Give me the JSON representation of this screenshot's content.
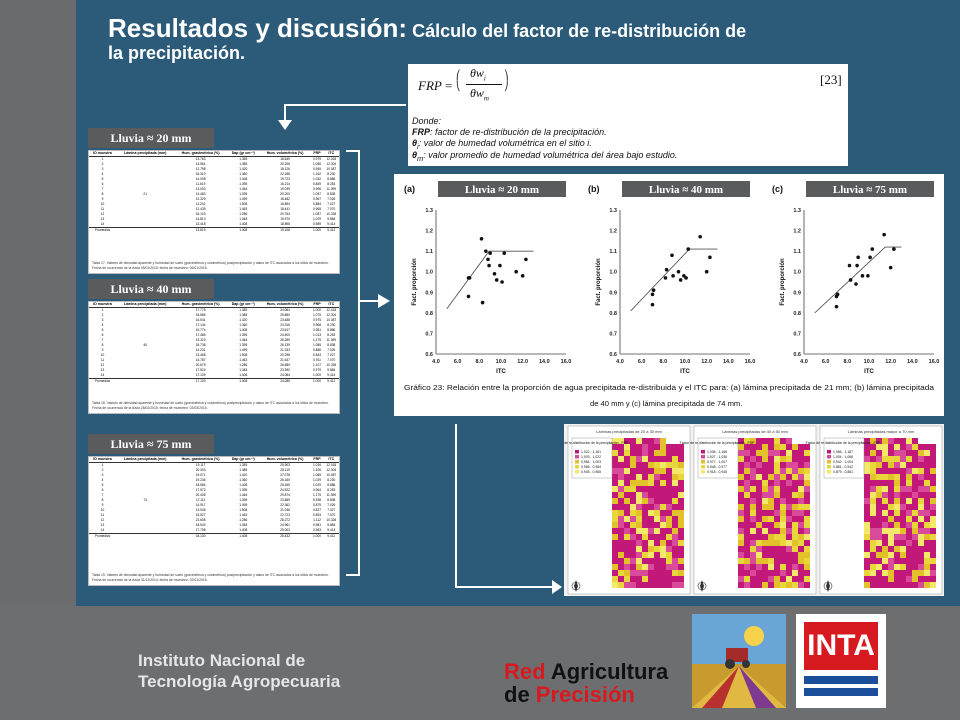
{
  "title": {
    "main": "Resultados y discusión:",
    "sub_line1": " Cálculo del factor de re-distribución de",
    "sub_line2": "la precipitación."
  },
  "institution": {
    "line1": "Instituto Nacional de",
    "line2": "Tecnología Agropecuaria"
  },
  "labels": {
    "rain20": "Lluvia ≈ 20 mm",
    "rain40": "Lluvia ≈ 40 mm",
    "rain75": "Lluvia ≈ 75 mm"
  },
  "formula": {
    "lhs": "FRP",
    "eq": "=",
    "num": "θw",
    "num_sub": "i",
    "den": "θw",
    "den_sub": "m",
    "ref": "[23]",
    "donde": "Donde:",
    "frp_def_key": "FRP",
    "frp_def": ": factor de re-distribución de la precipitación.",
    "theta_i_key": "θ",
    "theta_i_sub": "i",
    "theta_i_def": ": valor de humedad volumétrica en el sitio i.",
    "theta_m_key": "θ",
    "theta_m_sub": "m",
    "theta_m_def": ": valor promedio de humedad volumétrica del área bajo estudio."
  },
  "tables": {
    "headers": [
      "ID muestra",
      "Lámina precipitada (mm)",
      "Hum. gravimétrica (%)",
      "Dap (gr cm⁻³)",
      "Hum. volumétrica (%)",
      "FRP",
      "ITC"
    ],
    "t1": {
      "lamina": "21",
      "rows": [
        [
          "1",
          "13.763",
          "1.355",
          "18.649",
          "0.979",
          "12.018"
        ],
        [
          "2",
          "14.561",
          "1.385",
          "20.206",
          "1.056",
          "12.304"
        ],
        [
          "3",
          "12.798",
          "1.420",
          "18.126",
          "0.949",
          "10.087"
        ],
        [
          "4",
          "16.319",
          "1.360",
          "22.188",
          "1.162",
          "8.230"
        ],
        [
          "5",
          "14.008",
          "1.408",
          "19.723",
          "1.032",
          "8.886"
        ],
        [
          "6",
          "11.619",
          "1.395",
          "16.214",
          "0.849",
          "8.253"
        ],
        [
          "7",
          "13.003",
          "1.464",
          "19.039",
          "0.996",
          "11.399"
        ],
        [
          "8",
          "14.483",
          "1.395",
          "20.200",
          "1.057",
          "8.838"
        ],
        [
          "9",
          "12.329",
          "1.499",
          "18.482",
          "0.967",
          "7.026"
        ],
        [
          "10",
          "11.202",
          "1.508",
          "16.894",
          "0.884",
          "7.027"
        ],
        [
          "11",
          "12.439",
          "1.463",
          "18.441",
          "0.965",
          "7.070"
        ],
        [
          "12",
          "16.103",
          "1.286",
          "20.764",
          "1.087",
          "10.328"
        ],
        [
          "13",
          "14.813",
          "1.348",
          "19.970",
          "1.029",
          "9.884"
        ],
        [
          "14",
          "13.418",
          "1.408",
          "18.898",
          "0.989",
          "9.414"
        ]
      ],
      "avg": [
        "Promedios",
        "13.819",
        "1.408",
        "19.108",
        "1.000",
        "9.412"
      ],
      "caption": "Tabla 17: Valores de densidad aparente y humedad de suelo (gravimétrica y volumétrica) postprecipitación y datos de ITC asociados a los sitios de muestreo. Fecha de ocurrencia de la lluvia 05/01/2015; fecha de muestreo: 06/01/2015."
    },
    "t2": {
      "lamina": "40",
      "rows": [
        [
          "1",
          "17.775",
          "1.355",
          "24.084",
          "1.000",
          "12.018"
        ],
        [
          "2",
          "18.686",
          "1.385",
          "25.880",
          "1.075",
          "12.304"
        ],
        [
          "3",
          "16.541",
          "1.420",
          "23.488",
          "0.975",
          "10.087"
        ],
        [
          "4",
          "17.144",
          "1.360",
          "23.316",
          "0.968",
          "8.230"
        ],
        [
          "5",
          "16.774",
          "1.408",
          "23.617",
          "0.981",
          "8.886"
        ],
        [
          "6",
          "17.485",
          "1.395",
          "24.400",
          "1.013",
          "8.253"
        ],
        [
          "7",
          "19.323",
          "1.464",
          "28.289",
          "1.175",
          "11.399"
        ],
        [
          "8",
          "18.738",
          "1.395",
          "26.139",
          "1.085",
          "8.838"
        ],
        [
          "9",
          "14.231",
          "1.499",
          "21.333",
          "0.886",
          "7.026"
        ],
        [
          "10",
          "13.468",
          "1.508",
          "20.298",
          "0.843",
          "7.027"
        ],
        [
          "11",
          "14.787",
          "1.463",
          "21.637",
          "0.911",
          "7.070"
        ],
        [
          "12",
          "20.675",
          "1.286",
          "26.680",
          "1.107",
          "10.328"
        ],
        [
          "13",
          "17.524",
          "1.348",
          "23.590",
          "0.979",
          "9.884"
        ],
        [
          "14",
          "17.109",
          "1.408",
          "24.084",
          "1.000",
          "9.414"
        ]
      ],
      "avg": [
        "Promedios",
        "17.103",
        "1.408",
        "24.085",
        "1.000",
        "9.412"
      ],
      "caption": "Tabla 18: Valores de densidad aparente y humedad de suelo (gravimétrica y volumétrica) postprecipitación y datos de ITC asociados a los sitios de muestreo. Fecha de ocurrencia de la lluvia 28/02/2015; fecha de muestreo: 02/03/2015."
    },
    "t3": {
      "lamina": "74",
      "rows": [
        [
          "1",
          "19.117",
          "1.355",
          "25.903",
          "1.016",
          "12.018"
        ],
        [
          "2",
          "20.303",
          "1.385",
          "28.119",
          "1.106",
          "12.304"
        ],
        [
          "3",
          "19.071",
          "1.420",
          "27.078",
          "1.065",
          "10.087"
        ],
        [
          "4",
          "19.236",
          "1.360",
          "26.160",
          "1.029",
          "8.230"
        ],
        [
          "5",
          "18.584",
          "1.408",
          "26.165",
          "1.029",
          "8.886"
        ],
        [
          "6",
          "17.572",
          "1.395",
          "24.522",
          "0.964",
          "8.253"
        ],
        [
          "7",
          "20.406",
          "1.464",
          "29.874",
          "1.175",
          "11.399"
        ],
        [
          "8",
          "17.111",
          "1.395",
          "23.865",
          "0.938",
          "8.838"
        ],
        [
          "9",
          "14.917",
          "1.499",
          "22.362",
          "0.879",
          "7.026"
        ],
        [
          "10",
          "13.946",
          "1.508",
          "21.036",
          "0.827",
          "7.027"
        ],
        [
          "11",
          "15.527",
          "1.463",
          "22.723",
          "0.893",
          "7.070"
        ],
        [
          "12",
          "21.608",
          "1.286",
          "28.272",
          "1.112",
          "10.328"
        ],
        [
          "13",
          "18.543",
          "1.348",
          "24.961",
          "0.981",
          "9.884"
        ],
        [
          "14",
          "17.758",
          "1.408",
          "25.003",
          "0.983",
          "9.414"
        ]
      ],
      "avg": [
        "Promedios",
        "18.130",
        "1.408",
        "25.432",
        "1.000",
        "9.412"
      ],
      "caption": "Tabla 19: Valores de densidad aparente y humedad de suelo (gravimétrica y volumétrica) postprecipitación y datos de ITC asociados a los sitios de muestreo. Fecha de ocurrencia de la lluvia 31/12/2014; fecha de muestreo: 02/01/2015."
    }
  },
  "chart_data": [
    {
      "type": "scatter",
      "panel": "(a)",
      "header": "Lluvia ≈ 20 mm",
      "xlabel": "ITC",
      "ylabel": "Fact. proporción",
      "xlim": [
        4.0,
        16.0
      ],
      "ylim": [
        0.6,
        1.3
      ],
      "xticks": [
        "4.0",
        "6.0",
        "8.0",
        "10.0",
        "12.0",
        "14.0",
        "16.0"
      ],
      "yticks": [
        "0.6",
        "0.7",
        "0.8",
        "0.9",
        "1.0",
        "1.1",
        "1.2",
        "1.3"
      ],
      "points": [
        [
          12.0,
          0.98
        ],
        [
          12.3,
          1.06
        ],
        [
          10.1,
          0.95
        ],
        [
          8.2,
          1.16
        ],
        [
          8.9,
          1.03
        ],
        [
          8.3,
          0.85
        ],
        [
          11.4,
          1.0
        ],
        [
          8.8,
          1.06
        ],
        [
          7.0,
          0.97
        ],
        [
          7.0,
          0.88
        ],
        [
          7.1,
          0.97
        ],
        [
          10.3,
          1.09
        ],
        [
          9.9,
          1.03
        ],
        [
          9.4,
          0.99
        ],
        [
          9.0,
          1.09
        ],
        [
          8.6,
          1.1
        ],
        [
          9.6,
          0.96
        ]
      ],
      "fit": [
        [
          5.0,
          0.82
        ],
        [
          8.9,
          1.1
        ],
        [
          13.0,
          1.1
        ]
      ]
    },
    {
      "type": "scatter",
      "panel": "(b)",
      "header": "Lluvia ≈ 40 mm",
      "xlabel": "ITC",
      "ylabel": "Fact. proporción",
      "xlim": [
        4.0,
        16.0
      ],
      "ylim": [
        0.6,
        1.3
      ],
      "xticks": [
        "4.0",
        "6.0",
        "8.0",
        "10.0",
        "12.0",
        "14.0",
        "16.0"
      ],
      "yticks": [
        "0.6",
        "0.7",
        "0.8",
        "0.9",
        "1.0",
        "1.1",
        "1.2",
        "1.3"
      ],
      "points": [
        [
          12.0,
          1.0
        ],
        [
          12.3,
          1.07
        ],
        [
          10.1,
          0.97
        ],
        [
          8.2,
          0.97
        ],
        [
          8.9,
          0.98
        ],
        [
          8.3,
          1.01
        ],
        [
          11.4,
          1.17
        ],
        [
          8.8,
          1.08
        ],
        [
          7.0,
          0.89
        ],
        [
          7.0,
          0.84
        ],
        [
          7.1,
          0.91
        ],
        [
          10.3,
          1.11
        ],
        [
          9.9,
          0.98
        ],
        [
          9.4,
          1.0
        ],
        [
          9.6,
          0.96
        ]
      ],
      "fit": [
        [
          5.0,
          0.81
        ],
        [
          10.4,
          1.11
        ],
        [
          13.0,
          1.11
        ]
      ]
    },
    {
      "type": "scatter",
      "panel": "(c)",
      "header": "Lluvia ≈ 75 mm",
      "xlabel": "ITC",
      "ylabel": "Fact. proporción",
      "xlim": [
        4.0,
        16.0
      ],
      "ylim": [
        0.6,
        1.3
      ],
      "xticks": [
        "4.0",
        "6.0",
        "8.0",
        "10.0",
        "12.0",
        "14.0",
        "16.0"
      ],
      "yticks": [
        "0.6",
        "0.7",
        "0.8",
        "0.9",
        "1.0",
        "1.1",
        "1.2",
        "1.3"
      ],
      "points": [
        [
          12.0,
          1.02
        ],
        [
          12.3,
          1.11
        ],
        [
          10.1,
          1.07
        ],
        [
          8.2,
          1.03
        ],
        [
          8.9,
          1.03
        ],
        [
          8.3,
          0.96
        ],
        [
          11.4,
          1.18
        ],
        [
          8.8,
          0.94
        ],
        [
          7.0,
          0.88
        ],
        [
          7.0,
          0.83
        ],
        [
          7.1,
          0.89
        ],
        [
          10.3,
          1.11
        ],
        [
          9.9,
          0.98
        ],
        [
          9.4,
          0.98
        ],
        [
          9.0,
          1.07
        ]
      ],
      "fit": [
        [
          5.0,
          0.8
        ],
        [
          11.5,
          1.12
        ],
        [
          13.0,
          1.12
        ]
      ]
    }
  ],
  "chart_caption": "Gráfico 23: Relación entre la proporción de agua  precipitada re-distribuida y el ITC para: (a) lámina precipitada de 21 mm; (b) lámina precipitada de 40 mm y (c) lámina precipitada de 74 mm.",
  "maps": {
    "titles": [
      "Láminas precipitadas de 20 a 30 mm",
      "Láminas precipitadas de 40 a 50 mm",
      "Láminas precipitadas mayor a 70 mm"
    ],
    "legend_title": "Factor de re-distribución de la precipitación - FRP -",
    "legends": [
      [
        "1,022 - 1,161",
        "1,003 - 1,022",
        "0,984 - 1,003",
        "0,965 - 0,984",
        "0,945 - 0,965"
      ],
      [
        "1,036 - 1,168",
        "1,007 - 1,036",
        "0,977 - 1,007",
        "0,948 - 0,977",
        "0,918 - 0,948"
      ],
      [
        "1,066 - 1,187",
        "1,004 - 1,066",
        "0,942 - 1,004",
        "0,881 - 0,942",
        "0,879 - 0,881"
      ]
    ],
    "legend_colors": [
      "#c2187a",
      "#d94a9a",
      "#e2c12a",
      "#e9d63a",
      "#f3e86a"
    ]
  },
  "logos": {
    "rap_line1a": "Red ",
    "rap_line1b": "Agricultura",
    "rap_line2a": "de ",
    "rap_line2b": "Precisión",
    "inta": "INTA"
  },
  "colors": {
    "main_bg": "#2c5b7a",
    "side_bg": "#6b6c6e",
    "label_bg": "#5a5b5d",
    "inta_red": "#d71920",
    "inta_blue": "#1b4f9b"
  }
}
